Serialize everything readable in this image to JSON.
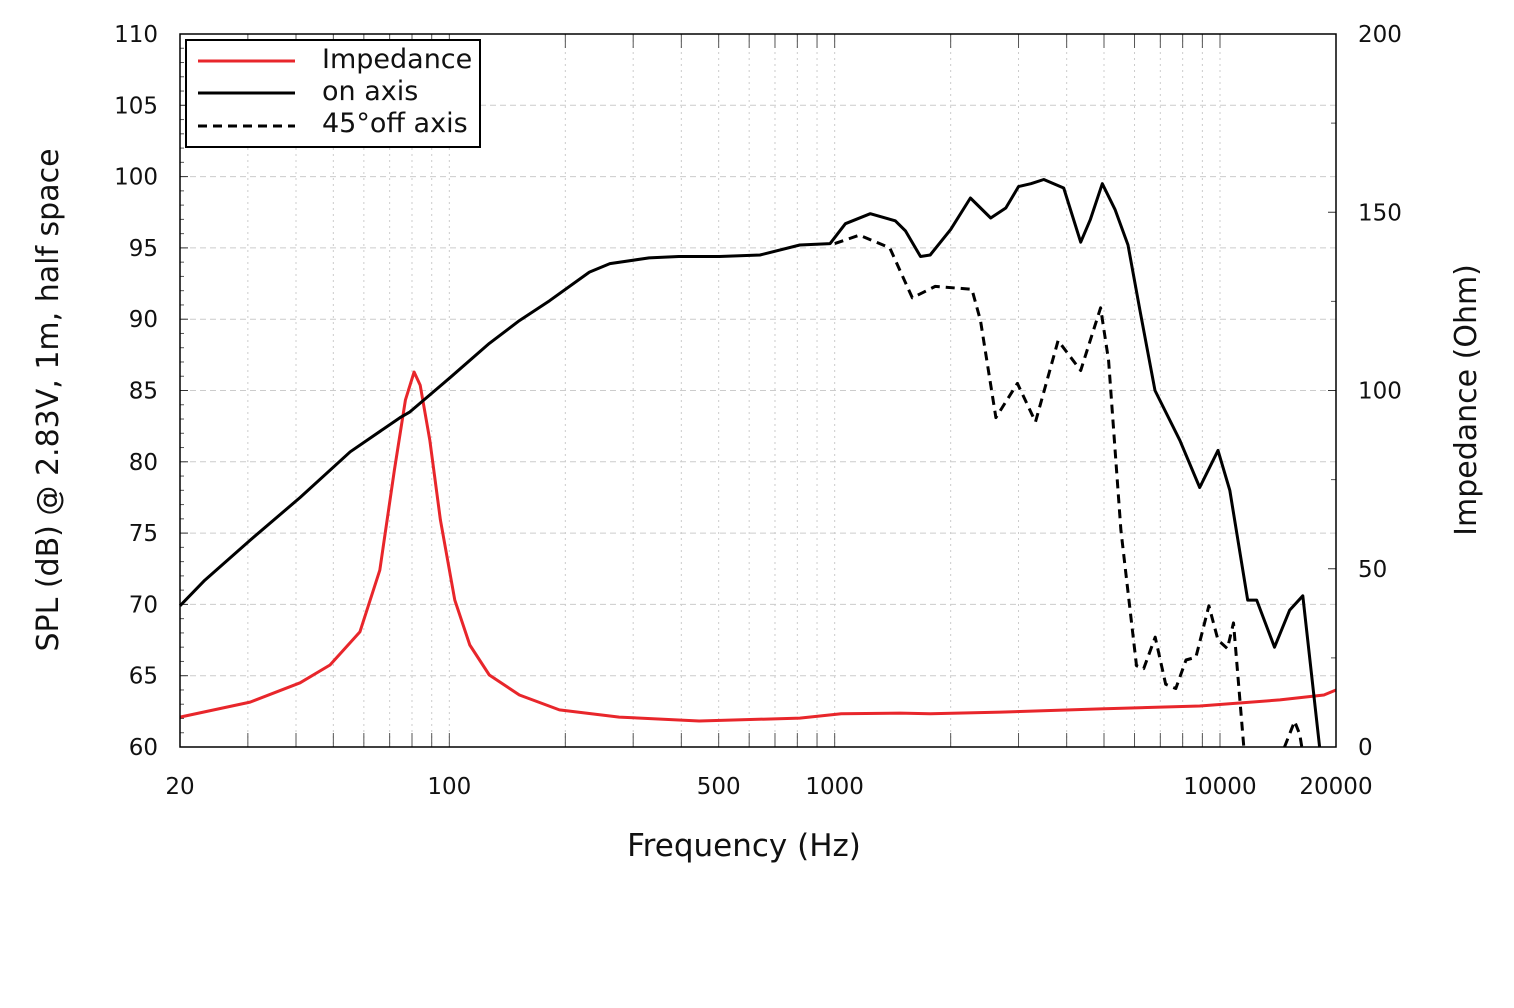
{
  "chart_data": {
    "type": "line",
    "xlabel": "Frequency (Hz)",
    "ylabel": "SPL (dB) @ 2.83V, 1m, half space",
    "y2label": "Impedance (Ohm)",
    "xscale": "log",
    "xlim": [
      20,
      20000
    ],
    "ylim": [
      60,
      110
    ],
    "y2lim": [
      0,
      200
    ],
    "xticks": [
      20,
      100,
      500,
      1000,
      10000,
      20000
    ],
    "yticks": [
      60,
      65,
      70,
      75,
      80,
      85,
      90,
      95,
      100,
      105,
      110
    ],
    "y2ticks": [
      0,
      50,
      100,
      150,
      200
    ],
    "grid": true,
    "legend_placement": "top-left",
    "series": [
      {
        "name": "Impedance",
        "axis": "right",
        "color": "#e8262b",
        "style": "solid",
        "points": [
          [
            20,
            8.4
          ],
          [
            30.4,
            12.6
          ],
          [
            41,
            18
          ],
          [
            49,
            23
          ],
          [
            58.6,
            32.3
          ],
          [
            66,
            49.6
          ],
          [
            72,
            77.7
          ],
          [
            76.9,
            97.3
          ],
          [
            81,
            105.2
          ],
          [
            84,
            101.5
          ],
          [
            89,
            86.1
          ],
          [
            94.8,
            63.7
          ],
          [
            103.3,
            41.2
          ],
          [
            113,
            28.6
          ],
          [
            127,
            20.2
          ],
          [
            152,
            14.6
          ],
          [
            193,
            10.4
          ],
          [
            276,
            8.4
          ],
          [
            445,
            7.3
          ],
          [
            812,
            8.1
          ],
          [
            1040,
            9.3
          ],
          [
            1480,
            9.5
          ],
          [
            1770,
            9.3
          ],
          [
            2700,
            9.8
          ],
          [
            4900,
            10.7
          ],
          [
            8860,
            11.5
          ],
          [
            14300,
            13.2
          ],
          [
            18600,
            14.6
          ],
          [
            20000,
            16
          ]
        ]
      },
      {
        "name": "on axis",
        "axis": "left",
        "color": "#000000",
        "style": "solid",
        "points": [
          [
            20,
            69.9
          ],
          [
            23.2,
            71.7
          ],
          [
            30.4,
            74.5
          ],
          [
            41,
            77.5
          ],
          [
            55.3,
            80.7
          ],
          [
            74.5,
            83.1
          ],
          [
            79,
            83.5
          ],
          [
            100.4,
            85.9
          ],
          [
            127,
            88.3
          ],
          [
            152,
            89.9
          ],
          [
            182,
            91.3
          ],
          [
            231,
            93.3
          ],
          [
            261,
            93.9
          ],
          [
            330,
            94.3
          ],
          [
            394,
            94.4
          ],
          [
            502,
            94.4
          ],
          [
            640,
            94.5
          ],
          [
            812,
            95.2
          ],
          [
            973,
            95.3
          ],
          [
            1066,
            96.7
          ],
          [
            1237,
            97.4
          ],
          [
            1437,
            96.9
          ],
          [
            1526,
            96.2
          ],
          [
            1670,
            94.4
          ],
          [
            1770,
            94.5
          ],
          [
            2000,
            96.3
          ],
          [
            2250,
            98.5
          ],
          [
            2540,
            97.1
          ],
          [
            2780,
            97.8
          ],
          [
            3000,
            99.3
          ],
          [
            3230,
            99.5
          ],
          [
            3490,
            99.8
          ],
          [
            3930,
            99.2
          ],
          [
            4350,
            95.4
          ],
          [
            4610,
            97.0
          ],
          [
            4950,
            99.5
          ],
          [
            5340,
            97.7
          ],
          [
            5770,
            95.2
          ],
          [
            6200,
            90.6
          ],
          [
            6780,
            85.0
          ],
          [
            7870,
            81.5
          ],
          [
            8860,
            78.2
          ],
          [
            9880,
            80.8
          ],
          [
            10600,
            78.0
          ],
          [
            11800,
            70.3
          ],
          [
            12450,
            70.3
          ],
          [
            13850,
            67.0
          ],
          [
            15170,
            69.6
          ],
          [
            16400,
            70.6
          ],
          [
            18130,
            60.0
          ]
        ]
      },
      {
        "name": "45°off axis",
        "axis": "left",
        "color": "#000000",
        "style": "dashed",
        "points": [
          [
            1000,
            95.3
          ],
          [
            1160,
            95.9
          ],
          [
            1390,
            95.0
          ],
          [
            1590,
            91.5
          ],
          [
            1823,
            92.3
          ],
          [
            2270,
            92.1
          ],
          [
            2390,
            89.9
          ],
          [
            2620,
            83.1
          ],
          [
            2980,
            85.5
          ],
          [
            3320,
            82.8
          ],
          [
            3800,
            88.5
          ],
          [
            4350,
            86.4
          ],
          [
            4900,
            90.8
          ],
          [
            5140,
            87.1
          ],
          [
            5530,
            75.2
          ],
          [
            6070,
            65.7
          ],
          [
            6340,
            65.5
          ],
          [
            6790,
            67.7
          ],
          [
            7230,
            64.4
          ],
          [
            7680,
            64.1
          ],
          [
            8160,
            66.1
          ],
          [
            8660,
            66.3
          ],
          [
            9360,
            69.9
          ],
          [
            9880,
            67.5
          ],
          [
            10450,
            66.9
          ],
          [
            10840,
            68.7
          ],
          [
            11530,
            60
          ],
          null,
          [
            14700,
            60
          ],
          [
            15620,
            61.8
          ],
          [
            16100,
            60.9
          ],
          [
            16300,
            60
          ]
        ]
      }
    ]
  }
}
